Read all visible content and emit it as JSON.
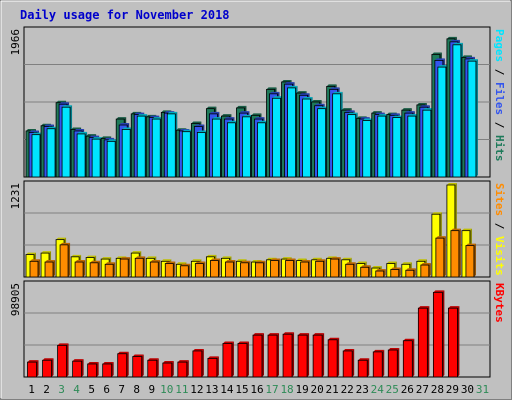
{
  "colors": {
    "background": "#c0c0c0",
    "plot_background": "#c0c0c0",
    "grid": "#808080",
    "weekday_label": "#000000",
    "weekend_label": "#2e8b57",
    "pages": "#00e5ff",
    "files": "#3355ee",
    "hits": "#1e7a5a",
    "visits": "#ffff00",
    "sites": "#ff8c00",
    "kbytes": "#ff0000",
    "slash": "#000000"
  },
  "chart_data": {
    "type": "bar",
    "title": "Daily usage for November 2018",
    "categories": [
      "1",
      "2",
      "3",
      "4",
      "5",
      "6",
      "7",
      "8",
      "9",
      "10",
      "11",
      "12",
      "13",
      "14",
      "15",
      "16",
      "17",
      "18",
      "19",
      "20",
      "21",
      "22",
      "23",
      "24",
      "25",
      "26",
      "27",
      "28",
      "29",
      "30",
      "31"
    ],
    "weekend_days": [
      "3",
      "4",
      "10",
      "11",
      "17",
      "18",
      "24",
      "25",
      "31"
    ],
    "panels": [
      {
        "id": "hits",
        "ymax_label": "1966",
        "ylim": [
          0,
          1966
        ],
        "labels": [
          {
            "text": "Pages",
            "color_key": "pages"
          },
          {
            "text": " / ",
            "color_key": "slash"
          },
          {
            "text": "Files",
            "color_key": "files"
          },
          {
            "text": " / ",
            "color_key": "slash"
          },
          {
            "text": "Hits",
            "color_key": "hits"
          }
        ],
        "series": [
          {
            "key": "hits",
            "values": [
              620,
              690,
              1000,
              640,
              550,
              520,
              780,
              850,
              810,
              870,
              630,
              720,
              920,
              820,
              930,
              830,
              1180,
              1280,
              1130,
              1010,
              1220,
              900,
              790,
              860,
              840,
              900,
              970,
              1650,
              1860,
              1610,
              null
            ]
          },
          {
            "key": "files",
            "values": [
              600,
              680,
              980,
              620,
              530,
              500,
              700,
              840,
              800,
              860,
              620,
              680,
              850,
              780,
              860,
              780,
              1120,
              1250,
              1100,
              960,
              1180,
              870,
              780,
              840,
              830,
              860,
              940,
              1570,
              1820,
              1590,
              null
            ]
          },
          {
            "key": "pages",
            "values": [
              570,
              650,
              940,
              580,
              510,
              480,
              640,
              820,
              780,
              850,
              610,
              600,
              780,
              730,
              810,
              730,
              1060,
              1200,
              1050,
              920,
              1120,
              840,
              760,
              820,
              800,
              820,
              900,
              1480,
              1780,
              1560,
              null
            ]
          }
        ]
      },
      {
        "id": "visits",
        "ymax_label": "1231",
        "ylim": [
          0,
          1231
        ],
        "labels": [
          {
            "text": "Sites",
            "color_key": "sites"
          },
          {
            "text": " / ",
            "color_key": "slash"
          },
          {
            "text": "Visits",
            "color_key": "visits"
          }
        ],
        "series": [
          {
            "key": "visits",
            "values": [
              300,
              320,
              500,
              270,
              260,
              240,
              250,
              320,
              250,
              210,
              170,
              210,
              270,
              250,
              210,
              200,
              230,
              240,
              220,
              230,
              250,
              230,
              180,
              120,
              180,
              170,
              210,
              840,
              1231,
              620,
              null
            ]
          },
          {
            "key": "sites",
            "values": [
              210,
              200,
              430,
              200,
              190,
              170,
              240,
              250,
              200,
              180,
              150,
              180,
              220,
              200,
              190,
              190,
              220,
              220,
              200,
              210,
              240,
              170,
              130,
              80,
              100,
              90,
              160,
              520,
              620,
              420,
              null
            ]
          }
        ]
      },
      {
        "id": "kbytes",
        "ymax_label": "98905",
        "ylim": [
          0,
          98905
        ],
        "labels": [
          {
            "text": "KBytes",
            "color_key": "kbytes"
          }
        ],
        "series": [
          {
            "key": "kbytes",
            "values": [
              16000,
              18000,
              34000,
              17000,
              14000,
              14000,
              25000,
              22000,
              18000,
              15000,
              16000,
              28000,
              20000,
              36000,
              36000,
              45000,
              45000,
              46000,
              45000,
              45000,
              40000,
              28000,
              18000,
              27000,
              29000,
              39000,
              74000,
              91000,
              74000,
              null,
              null
            ]
          }
        ]
      }
    ]
  }
}
